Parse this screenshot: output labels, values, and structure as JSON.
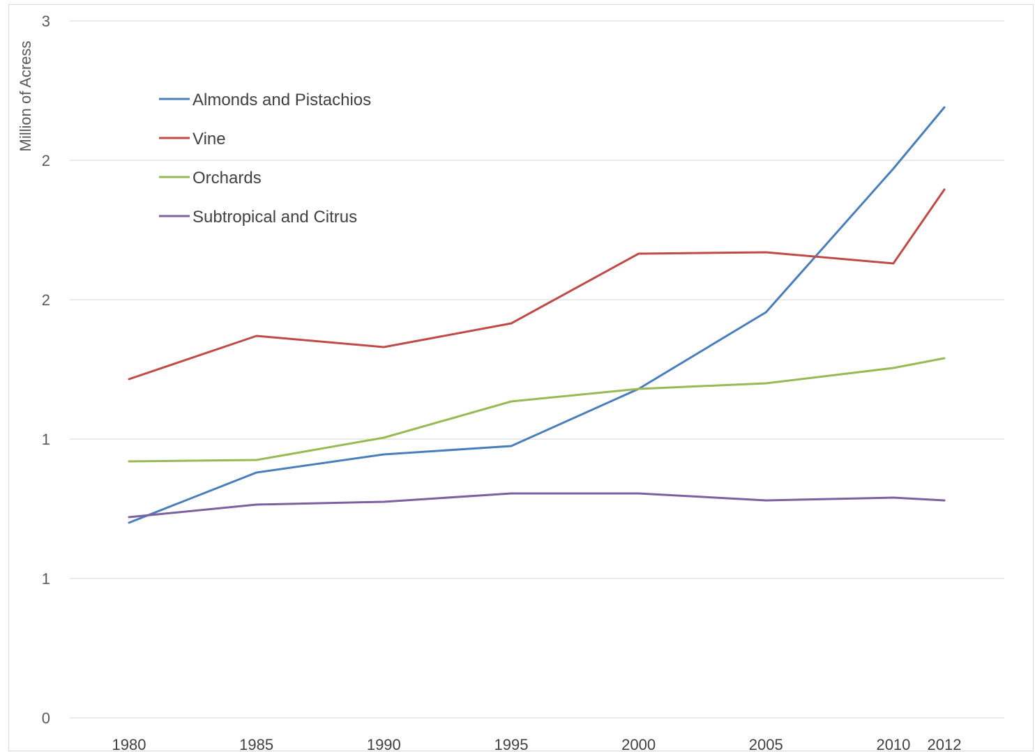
{
  "chart_data": {
    "type": "line",
    "title": "",
    "xlabel": "",
    "ylabel": "Million of Acress",
    "categories": [
      "1980",
      "1985",
      "1990",
      "1995",
      "2000",
      "2005",
      "2010",
      "2012"
    ],
    "y_tick_labels": [
      "0",
      "1",
      "1",
      "2",
      "2",
      "3"
    ],
    "ylim": [
      0,
      2.5
    ],
    "grid": true,
    "legend_position": "top-left",
    "series": [
      {
        "name": "Almonds and Pistachios",
        "color": "#4a7ebb",
        "values": [
          0.7,
          0.88,
          0.945,
          0.975,
          1.18,
          1.455,
          1.97,
          2.19
        ]
      },
      {
        "name": "Vine",
        "color": "#be4b48",
        "values": [
          1.215,
          1.37,
          1.33,
          1.415,
          1.665,
          1.67,
          1.63,
          1.895
        ]
      },
      {
        "name": "Orchards",
        "color": "#98b954",
        "values": [
          0.92,
          0.925,
          1.005,
          1.135,
          1.18,
          1.2,
          1.255,
          1.29
        ]
      },
      {
        "name": "Subtropical and Citrus",
        "color": "#7d60a0",
        "values": [
          0.72,
          0.765,
          0.775,
          0.805,
          0.805,
          0.78,
          0.79,
          0.78
        ]
      }
    ]
  }
}
